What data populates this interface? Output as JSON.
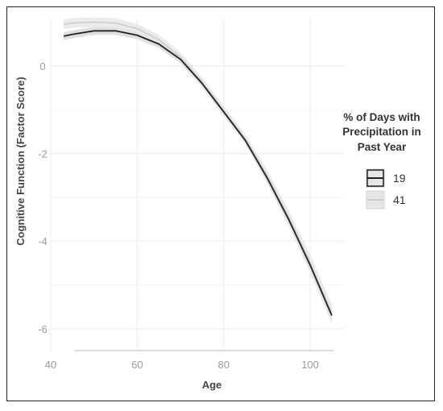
{
  "chart_data": {
    "type": "line",
    "title": "",
    "xlabel": "Age",
    "ylabel": "Cognitive Function (Factor Score)",
    "xlim": [
      40,
      108
    ],
    "ylim": [
      -6.5,
      1.1
    ],
    "x_ticks": [
      40,
      60,
      80,
      100
    ],
    "y_ticks": [
      0,
      -2,
      -4,
      -6
    ],
    "grid": true,
    "legend": {
      "title_lines": [
        "% of Days with",
        "Precipitation in",
        "Past Year"
      ],
      "placement": "right"
    },
    "series": [
      {
        "name": "19",
        "color": "#222222",
        "x": [
          43,
          45,
          50,
          55,
          60,
          65,
          70,
          75,
          80,
          85,
          90,
          95,
          100,
          105
        ],
        "y": [
          0.68,
          0.72,
          0.8,
          0.8,
          0.7,
          0.5,
          0.15,
          -0.4,
          -1.05,
          -1.7,
          -2.55,
          -3.5,
          -4.55,
          -5.7
        ]
      },
      {
        "name": "41",
        "color": "#c8c8c8",
        "x": [
          43,
          45,
          50,
          55,
          60,
          65,
          70,
          75,
          80,
          85,
          90,
          95,
          100,
          105
        ],
        "y": [
          0.95,
          0.98,
          1.0,
          0.98,
          0.85,
          0.6,
          0.2,
          -0.37,
          -1.02,
          -1.67,
          -2.5,
          -3.45,
          -4.5,
          -5.65
        ]
      }
    ]
  }
}
